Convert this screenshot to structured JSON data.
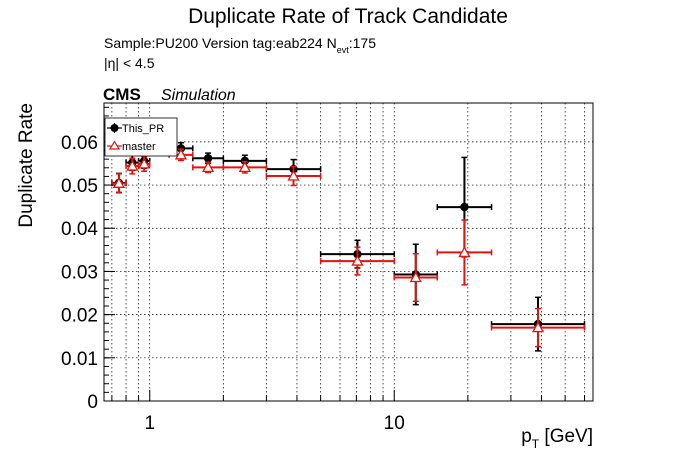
{
  "chart_data": {
    "type": "scatter",
    "title": "Duplicate Rate of Track Candidate",
    "info_line": {
      "prefix": "Sample:PU200   Version tag:eab224  N",
      "sub": "evt",
      "suffix": ":175"
    },
    "eta_cut": "|η| < 4.5",
    "cms_label": "CMS",
    "simulation_label": "Simulation",
    "ylabel": "Duplicate Rate",
    "xlabel_main": "p",
    "xlabel_sub": "T",
    "xlabel_unit": " [GeV]",
    "xscale": "log",
    "xlim": [
      0.65,
      65
    ],
    "ylim": [
      0,
      0.069
    ],
    "yticks": [
      0,
      0.01,
      0.02,
      0.03,
      0.04,
      0.05,
      0.06
    ],
    "ytick_labels": [
      "0",
      "0.01",
      "0.02",
      "0.03",
      "0.04",
      "0.05",
      "0.06"
    ],
    "xticks": [
      1,
      10
    ],
    "xtick_labels": [
      "1",
      "10"
    ],
    "grid": true,
    "legend_position": "top-left",
    "series": [
      {
        "name": "This_PR",
        "color": "#000000",
        "marker": "filled-circle",
        "points": [
          {
            "xlo": 0.7,
            "xhi": 0.8,
            "y": 0.0505,
            "err": 0.0022
          },
          {
            "xlo": 0.8,
            "xhi": 0.9,
            "y": 0.0552,
            "err": 0.0018
          },
          {
            "xlo": 0.9,
            "xhi": 1.0,
            "y": 0.0556,
            "err": 0.0017
          },
          {
            "xlo": 1.2,
            "xhi": 1.5,
            "y": 0.0585,
            "err": 0.0013
          },
          {
            "xlo": 1.5,
            "xhi": 2.0,
            "y": 0.0562,
            "err": 0.0012
          },
          {
            "xlo": 2.0,
            "xhi": 3.0,
            "y": 0.0556,
            "err": 0.0013
          },
          {
            "xlo": 3.0,
            "xhi": 5.0,
            "y": 0.0537,
            "err": 0.0022
          },
          {
            "xlo": 5.0,
            "xhi": 10.0,
            "y": 0.034,
            "err": 0.0032
          },
          {
            "xlo": 10.0,
            "xhi": 15.0,
            "y": 0.0293,
            "err": 0.007
          },
          {
            "xlo": 15.0,
            "xhi": 25.0,
            "y": 0.0449,
            "err": 0.0115
          },
          {
            "xlo": 25.0,
            "xhi": 60.0,
            "y": 0.0178,
            "err": 0.0062
          }
        ]
      },
      {
        "name": "master",
        "color": "#e8120c",
        "marker": "open-triangle",
        "points": [
          {
            "xlo": 0.7,
            "xhi": 0.8,
            "y": 0.0504,
            "err": 0.0022
          },
          {
            "xlo": 0.8,
            "xhi": 0.9,
            "y": 0.0544,
            "err": 0.0018
          },
          {
            "xlo": 0.9,
            "xhi": 1.0,
            "y": 0.0549,
            "err": 0.0017
          },
          {
            "xlo": 1.2,
            "xhi": 1.5,
            "y": 0.057,
            "err": 0.0013
          },
          {
            "xlo": 1.5,
            "xhi": 2.0,
            "y": 0.0541,
            "err": 0.0012
          },
          {
            "xlo": 2.0,
            "xhi": 3.0,
            "y": 0.0541,
            "err": 0.0013
          },
          {
            "xlo": 3.0,
            "xhi": 5.0,
            "y": 0.0521,
            "err": 0.0022
          },
          {
            "xlo": 5.0,
            "xhi": 10.0,
            "y": 0.0324,
            "err": 0.0032
          },
          {
            "xlo": 10.0,
            "xhi": 15.0,
            "y": 0.0286,
            "err": 0.0055
          },
          {
            "xlo": 15.0,
            "xhi": 25.0,
            "y": 0.0344,
            "err": 0.0075
          },
          {
            "xlo": 25.0,
            "xhi": 60.0,
            "y": 0.017,
            "err": 0.0044
          }
        ]
      }
    ]
  }
}
